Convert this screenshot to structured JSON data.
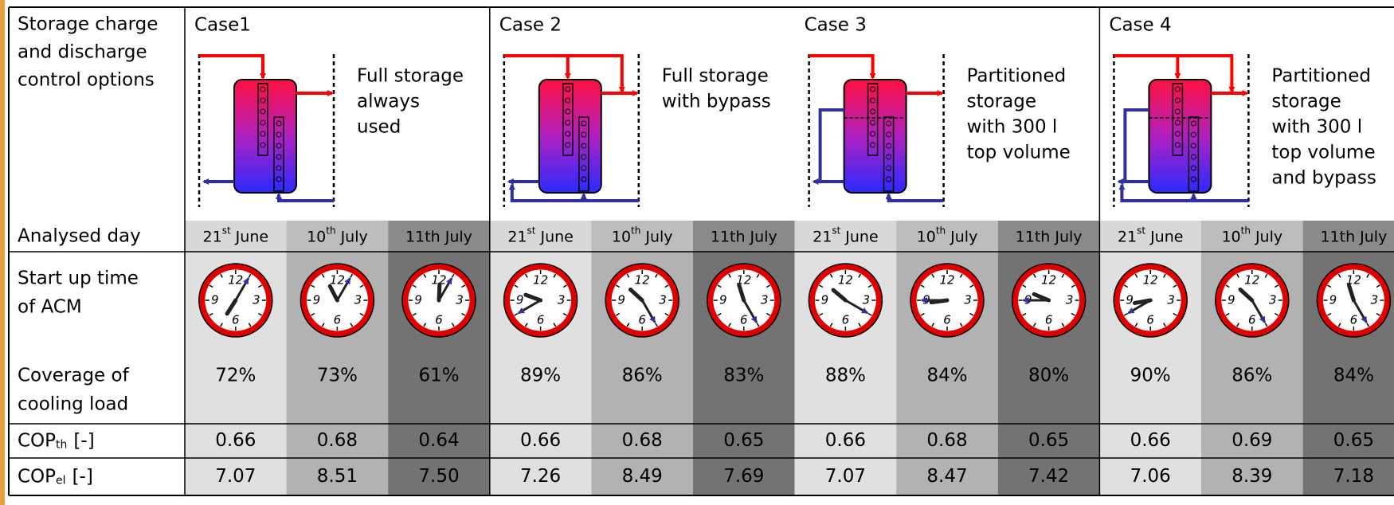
{
  "labels": {
    "control": [
      "Storage charge",
      "and discharge",
      "control options"
    ],
    "day": "Analysed day",
    "startup": [
      "Start up time",
      "of ACM"
    ],
    "coverage": [
      "Coverage of",
      "cooling load"
    ],
    "cop_th": {
      "main": "COP",
      "sub": "th",
      "tail": "[-]"
    },
    "cop_el": {
      "main": "COP",
      "sub": "el",
      "tail": "[-]"
    }
  },
  "clock_numerals": [
    "12",
    "3",
    "6",
    "9"
  ],
  "cases": [
    {
      "title": "Case1",
      "description": [
        "Full storage",
        "always",
        "used"
      ],
      "partitioned": false,
      "bypass": false,
      "days": [
        {
          "number": "21",
          "ordinal": "st",
          "month": "June"
        },
        {
          "number": "10",
          "ordinal": "th",
          "month": "July"
        },
        {
          "text": "11th July"
        }
      ],
      "start_times": [
        {
          "hour": 7,
          "minute": 5
        },
        {
          "hour": 11,
          "minute": 5
        },
        {
          "hour": 12,
          "minute": 5
        }
      ],
      "coverage": [
        "72%",
        "73%",
        "61%"
      ],
      "cop_th": [
        "0.66",
        "0.68",
        "0.64"
      ],
      "cop_el": [
        "7.07",
        "8.51",
        "7.50"
      ]
    },
    {
      "title": "Case 2",
      "description": [
        "Full storage",
        "with bypass"
      ],
      "partitioned": false,
      "bypass": true,
      "days": [
        {
          "number": "21",
          "ordinal": "st",
          "month": "June"
        },
        {
          "number": "10",
          "ordinal": "th",
          "month": "July"
        },
        {
          "text": "11th July"
        }
      ],
      "start_times": [
        {
          "hour": 9,
          "minute": 40
        },
        {
          "hour": 10,
          "minute": 25
        },
        {
          "hour": 11,
          "minute": 25
        }
      ],
      "coverage": [
        "89%",
        "86%",
        "83%"
      ],
      "cop_th": [
        "0.66",
        "0.68",
        "0.65"
      ],
      "cop_el": [
        "7.26",
        "8.49",
        "7.69"
      ]
    },
    {
      "title": "Case 3",
      "description": [
        "Partitioned",
        "storage",
        "with 300 l",
        "top volume"
      ],
      "partitioned": true,
      "bypass": false,
      "days": [
        {
          "number": "21",
          "ordinal": "st",
          "month": "June"
        },
        {
          "number": "10",
          "ordinal": "th",
          "month": "July"
        },
        {
          "text": "11th July"
        }
      ],
      "start_times": [
        {
          "hour": 10,
          "minute": 20
        },
        {
          "hour": 8,
          "minute": 45
        },
        {
          "hour": 9,
          "minute": 45
        }
      ],
      "coverage": [
        "88%",
        "84%",
        "80%"
      ],
      "cop_th": [
        "0.66",
        "0.68",
        "0.65"
      ],
      "cop_el": [
        "7.07",
        "8.47",
        "7.42"
      ]
    },
    {
      "title": "Case 4",
      "description": [
        "Partitioned",
        "storage",
        "with 300 l",
        "top volume",
        "and bypass"
      ],
      "partitioned": true,
      "bypass": true,
      "days": [
        {
          "number": "21",
          "ordinal": "st",
          "month": "June"
        },
        {
          "number": "10",
          "ordinal": "th",
          "month": "July"
        },
        {
          "text": "11th July"
        }
      ],
      "start_times": [
        {
          "hour": 8,
          "minute": 40
        },
        {
          "hour": 10,
          "minute": 25
        },
        {
          "hour": 11,
          "minute": 25
        }
      ],
      "coverage": [
        "90%",
        "86%",
        "84%"
      ],
      "cop_th": [
        "0.66",
        "0.69",
        "0.65"
      ],
      "cop_el": [
        "7.06",
        "8.39",
        "7.18"
      ]
    }
  ]
}
